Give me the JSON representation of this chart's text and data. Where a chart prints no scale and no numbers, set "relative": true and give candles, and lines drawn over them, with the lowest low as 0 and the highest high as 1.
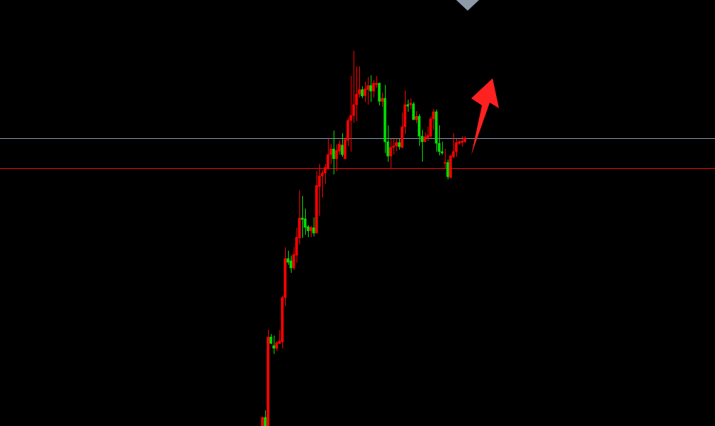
{
  "chart_data": {
    "type": "candlestick",
    "relative": true,
    "categories": [
      null,
      null,
      null,
      null,
      null,
      null,
      null,
      null,
      null,
      null,
      null,
      null,
      null,
      null,
      null,
      null,
      null,
      null,
      null,
      null,
      null,
      null,
      null,
      null,
      null,
      null,
      null,
      null,
      null,
      null,
      null,
      null,
      null,
      null,
      null,
      null,
      null,
      null,
      null,
      null,
      null,
      null,
      null,
      null,
      null,
      null,
      null,
      null,
      null,
      null,
      null,
      null,
      null,
      null,
      null,
      null,
      null,
      null,
      null,
      null,
      null,
      null,
      null,
      null,
      null,
      null,
      null,
      null,
      null,
      null,
      null,
      null
    ],
    "ohlc": [
      [
        0,
        0.025,
        0,
        0.023
      ],
      [
        0.023,
        0.042,
        0,
        0
      ],
      [
        0,
        0.256,
        0,
        0.237
      ],
      [
        0.237,
        0.245,
        0.218,
        0.22
      ],
      [
        0.214,
        0.241,
        0.192,
        0.207
      ],
      [
        0.207,
        0.226,
        0.199,
        0.222
      ],
      [
        0.22,
        0.256,
        0.218,
        0.226
      ],
      [
        0.224,
        0.347,
        0.207,
        0.342
      ],
      [
        0.342,
        0.476,
        0.319,
        0.446
      ],
      [
        0.446,
        0.467,
        0.429,
        0.436
      ],
      [
        0.44,
        0.454,
        0.408,
        0.421
      ],
      [
        0.421,
        0.476,
        0.416,
        0.457
      ],
      [
        0.455,
        0.528,
        0.435,
        0.503
      ],
      [
        0.501,
        0.628,
        0.484,
        0.554
      ],
      [
        0.554,
        0.613,
        0.501,
        0.55
      ],
      [
        0.552,
        0.579,
        0.509,
        0.529
      ],
      [
        0.531,
        0.535,
        0.503,
        0.52
      ],
      [
        0.52,
        0.533,
        0.503,
        0.529
      ],
      [
        0.528,
        0.556,
        0.505,
        0.514
      ],
      [
        0.514,
        0.679,
        0.514,
        0.641
      ],
      [
        0.638,
        0.698,
        0.56,
        0.666
      ],
      [
        0.666,
        0.681,
        0.609,
        0.674
      ],
      [
        0.674,
        0.698,
        0.645,
        0.689
      ],
      [
        0.685,
        0.765,
        0.683,
        0.723
      ],
      [
        0.723,
        0.751,
        0.698,
        0.738
      ],
      [
        0.738,
        0.787,
        0.67,
        0.712
      ],
      [
        0.712,
        0.75,
        0.679,
        0.734
      ],
      [
        0.732,
        0.761,
        0.723,
        0.751
      ],
      [
        0.748,
        0.78,
        0.717,
        0.723
      ],
      [
        0.712,
        0.768,
        0.712,
        0.763
      ],
      [
        0.761,
        0.822,
        0.746,
        0.814
      ],
      [
        0.814,
        0.932,
        0.731,
        0.827
      ],
      [
        0.827,
        1,
        0.808,
        0.856
      ],
      [
        0.856,
        0.958,
        0.812,
        0.884
      ],
      [
        0.884,
        0.958,
        0.875,
        0.896
      ],
      [
        0.896,
        0.905,
        0.873,
        0.879
      ],
      [
        0.88,
        0.917,
        0.863,
        0.898
      ],
      [
        0.896,
        0.93,
        0.856,
        0.907
      ],
      [
        0.907,
        0.934,
        0.863,
        0.892
      ],
      [
        0.892,
        0.922,
        0.875,
        0.913
      ],
      [
        0.909,
        0.932,
        0.901,
        0.913
      ],
      [
        0.913,
        0.915,
        0.854,
        0.865
      ],
      [
        0.865,
        0.888,
        0.85,
        0.873
      ],
      [
        0.873,
        0.909,
        0.727,
        0.757
      ],
      [
        0.757,
        0.801,
        0.704,
        0.719
      ],
      [
        0.719,
        0.765,
        0.687,
        0.742
      ],
      [
        0.742,
        0.765,
        0.723,
        0.746
      ],
      [
        0.746,
        0.765,
        0.732,
        0.755
      ],
      [
        0.755,
        0.765,
        0.736,
        0.744
      ],
      [
        0.742,
        0.835,
        0.74,
        0.797
      ],
      [
        0.797,
        0.894,
        0.778,
        0.856
      ],
      [
        0.856,
        0.869,
        0.837,
        0.852
      ],
      [
        0.856,
        0.873,
        0.844,
        0.86
      ],
      [
        0.858,
        0.863,
        0.816,
        0.816
      ],
      [
        0.816,
        0.839,
        0.806,
        0.825
      ],
      [
        0.825,
        0.831,
        0.746,
        0.772
      ],
      [
        0.772,
        0.789,
        0.704,
        0.757
      ],
      [
        0.757,
        0.782,
        0.757,
        0.77
      ],
      [
        0.768,
        0.797,
        0.759,
        0.774
      ],
      [
        0.772,
        0.824,
        0.767,
        0.818
      ],
      [
        0.818,
        0.844,
        0.789,
        0.837
      ],
      [
        0.837,
        0.843,
        0.731,
        0.753
      ],
      [
        0.753,
        0.801,
        0.721,
        0.731
      ],
      [
        0.731,
        0.757,
        0.723,
        0.727
      ],
      [
        0.7,
        0.738,
        0.687,
        0.702
      ],
      [
        0.702,
        0.71,
        0.657,
        0.664
      ],
      [
        0.662,
        0.723,
        0.66,
        0.719
      ],
      [
        0.717,
        0.78,
        0.713,
        0.731
      ],
      [
        0.731,
        0.765,
        0.717,
        0.755
      ],
      [
        0.753,
        0.761,
        0.75,
        0.757
      ],
      [
        0.755,
        0.772,
        0.744,
        0.759
      ],
      [
        0.757,
        0.772,
        0.755,
        0.767
      ]
    ],
    "colors": [
      "#ff0000",
      "#00e000",
      "#ff0000",
      "#00e000",
      "#00e000",
      "#ff0000",
      "#ff0000",
      "#ff0000",
      "#ff0000",
      "#00e000",
      "#00e000",
      "#ff0000",
      "#ff0000",
      "#ff0000",
      "#00e000",
      "#00e000",
      "#00e000",
      "#ff0000",
      "#00e000",
      "#ff0000",
      "#ff0000",
      "#ff0000",
      "#ff0000",
      "#ff0000",
      "#ff0000",
      "#00e000",
      "#ff0000",
      "#ff0000",
      "#00e000",
      "#ff0000",
      "#ff0000",
      "#ff0000",
      "#ff0000",
      "#ff0000",
      "#ff0000",
      "#00e000",
      "#ff0000",
      "#ff0000",
      "#00e000",
      "#ff0000",
      "#ff0000",
      "#00e000",
      "#ff0000",
      "#00e000",
      "#00e000",
      "#ff0000",
      "#ff0000",
      "#ff0000",
      "#00e000",
      "#ff0000",
      "#ff0000",
      "#00e000",
      "#ff0000",
      "#00e000",
      "#ff0000",
      "#00e000",
      "#00e000",
      "#ff0000",
      "#ff0000",
      "#ff0000",
      "#ff0000",
      "#00e000",
      "#00e000",
      "#00e000",
      "#ff0000",
      "#00e000",
      "#ff0000",
      "#ff0000",
      "#ff0000",
      "#ff0000",
      "#ff0000",
      "#ff0000"
    ],
    "ref_lines": [
      {
        "axis": "y",
        "value": 0.767,
        "color": "#8a9bb0"
      },
      {
        "axis": "y",
        "value": 0.687,
        "color": "#ff0000"
      }
    ]
  }
}
